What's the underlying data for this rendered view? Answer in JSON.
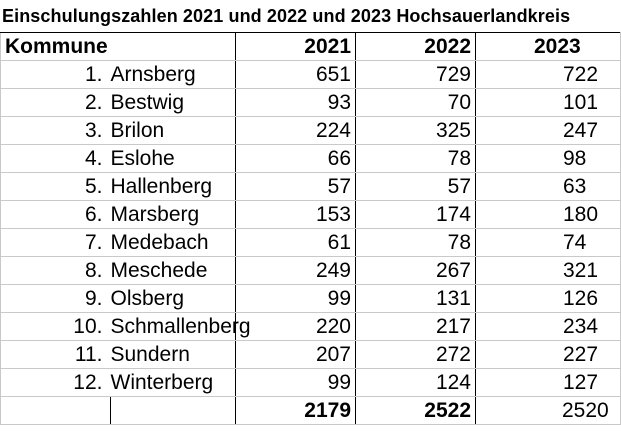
{
  "title": "Einschulungszahlen 2021 und  2022 und 2023 Hochsauerlandkreis",
  "header": {
    "kommune": "Kommune",
    "y2021": "2021",
    "y2022": "2022",
    "y2023": "2023"
  },
  "rows": [
    {
      "idx": "1.",
      "name": "Arnsberg",
      "v2021": "651",
      "v2022": "729",
      "v2023": "722"
    },
    {
      "idx": "2.",
      "name": "Bestwig",
      "v2021": "93",
      "v2022": "70",
      "v2023": "101"
    },
    {
      "idx": "3.",
      "name": "Brilon",
      "v2021": "224",
      "v2022": "325",
      "v2023": "247"
    },
    {
      "idx": "4.",
      "name": "Eslohe",
      "v2021": "66",
      "v2022": "78",
      "v2023": "98"
    },
    {
      "idx": "5.",
      "name": "Hallenberg",
      "v2021": "57",
      "v2022": "57",
      "v2023": "63"
    },
    {
      "idx": "6.",
      "name": "Marsberg",
      "v2021": "153",
      "v2022": "174",
      "v2023": "180"
    },
    {
      "idx": "7.",
      "name": "Medebach",
      "v2021": "61",
      "v2022": "78",
      "v2023": "74"
    },
    {
      "idx": "8.",
      "name": "Meschede",
      "v2021": "249",
      "v2022": "267",
      "v2023": "321"
    },
    {
      "idx": "9.",
      "name": "Olsberg",
      "v2021": "99",
      "v2022": "131",
      "v2023": "126"
    },
    {
      "idx": "10.",
      "name": "Schmallenberg",
      "v2021": "220",
      "v2022": "217",
      "v2023": "234"
    },
    {
      "idx": "11.",
      "name": "Sundern",
      "v2021": "207",
      "v2022": "272",
      "v2023": "227"
    },
    {
      "idx": "12.",
      "name": "Winterberg",
      "v2021": "99",
      "v2022": "124",
      "v2023": "127"
    }
  ],
  "totals": {
    "v2021": "2179",
    "v2022": "2522",
    "v2023": "2520"
  }
}
